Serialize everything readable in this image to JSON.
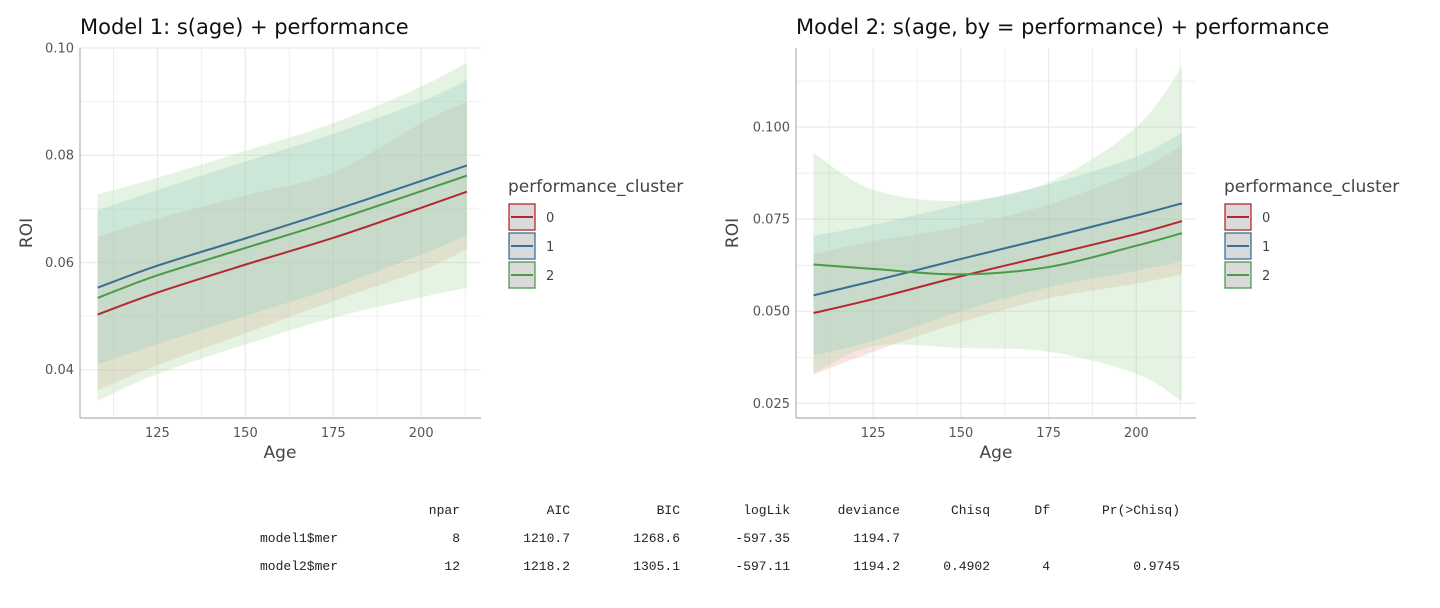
{
  "chart_data": [
    {
      "type": "line",
      "title": "Model 1: s(age) + performance",
      "xlabel": "Age",
      "ylabel": "ROI",
      "xlim": [
        103,
        217
      ],
      "ylim": [
        0.031,
        0.1
      ],
      "x_ticks": [
        125,
        150,
        175,
        200
      ],
      "y_ticks": [
        0.04,
        0.06,
        0.08,
        0.1
      ],
      "x_tick_labels": [
        "125",
        "150",
        "175",
        "200"
      ],
      "y_tick_labels": [
        "0.04",
        "0.06",
        "0.08",
        "0.10"
      ],
      "grid": true,
      "legend": {
        "title": "performance_cluster",
        "placement": "right",
        "entries": [
          "0",
          "1",
          "2"
        ]
      },
      "x": [
        108,
        125,
        150,
        175,
        200,
        213
      ],
      "series": [
        {
          "name": "0",
          "color": "#b2292e",
          "values": [
            0.0503,
            0.0544,
            0.0596,
            0.0646,
            0.0702,
            0.0732
          ],
          "lower": [
            0.0362,
            0.0408,
            0.0468,
            0.0528,
            0.0585,
            0.0625
          ],
          "upper": [
            0.0648,
            0.0682,
            0.0725,
            0.0768,
            0.086,
            0.09
          ]
        },
        {
          "name": "1",
          "color": "#3a6e94",
          "values": [
            0.0553,
            0.0594,
            0.0645,
            0.0697,
            0.0752,
            0.0781
          ],
          "lower": [
            0.041,
            0.0448,
            0.05,
            0.0553,
            0.0615,
            0.065
          ],
          "upper": [
            0.0697,
            0.0735,
            0.0788,
            0.084,
            0.09,
            0.094
          ]
        },
        {
          "name": "2",
          "color": "#4a9a4a",
          "values": [
            0.0534,
            0.0576,
            0.0627,
            0.0678,
            0.0733,
            0.0762
          ],
          "lower": [
            0.0342,
            0.0392,
            0.0447,
            0.0497,
            0.0535,
            0.0553
          ],
          "upper": [
            0.0727,
            0.0758,
            0.0808,
            0.086,
            0.0928,
            0.0973
          ]
        }
      ]
    },
    {
      "type": "line",
      "title": "Model 2: s(age, by = performance) + performance",
      "xlabel": "Age",
      "ylabel": "ROI",
      "xlim": [
        103,
        217
      ],
      "ylim": [
        0.021,
        0.1215
      ],
      "x_ticks": [
        125,
        150,
        175,
        200
      ],
      "y_ticks": [
        0.025,
        0.05,
        0.075,
        0.1
      ],
      "x_tick_labels": [
        "125",
        "150",
        "175",
        "200"
      ],
      "y_tick_labels": [
        "0.025",
        "0.050",
        "0.075",
        "0.100"
      ],
      "grid": true,
      "legend": {
        "title": "performance_cluster",
        "placement": "right",
        "entries": [
          "0",
          "1",
          "2"
        ]
      },
      "x": [
        108,
        125,
        150,
        175,
        200,
        213
      ],
      "series": [
        {
          "name": "0",
          "color": "#b2292e",
          "values": [
            0.0495,
            0.0533,
            0.0595,
            0.0652,
            0.071,
            0.0745
          ],
          "lower": [
            0.0328,
            0.039,
            0.047,
            0.0535,
            0.0575,
            0.06
          ],
          "upper": [
            0.0655,
            0.069,
            0.073,
            0.079,
            0.088,
            0.095
          ]
        },
        {
          "name": "1",
          "color": "#3a6e94",
          "values": [
            0.0543,
            0.0582,
            0.0642,
            0.07,
            0.076,
            0.0793
          ],
          "lower": [
            0.038,
            0.042,
            0.05,
            0.0565,
            0.061,
            0.0635
          ],
          "upper": [
            0.0705,
            0.0735,
            0.079,
            0.0845,
            0.092,
            0.0985
          ]
        },
        {
          "name": "2",
          "color": "#4a9a4a",
          "values": [
            0.0627,
            0.0615,
            0.06,
            0.062,
            0.0678,
            0.0712
          ],
          "lower": [
            0.033,
            0.0405,
            0.04,
            0.039,
            0.033,
            0.0255
          ],
          "upper": [
            0.093,
            0.083,
            0.08,
            0.085,
            0.1,
            0.1165
          ]
        }
      ]
    }
  ],
  "anova_table": {
    "headers": [
      "npar",
      "AIC",
      "BIC",
      "logLik",
      "deviance",
      "Chisq",
      "Df",
      "Pr(>Chisq)"
    ],
    "rows": [
      {
        "label": "model1$mer",
        "cells": [
          "8",
          "1210.7",
          "1268.6",
          "-597.35",
          "1194.7",
          "",
          "",
          ""
        ]
      },
      {
        "label": "model2$mer",
        "cells": [
          "12",
          "1218.2",
          "1305.1",
          "-597.11",
          "1194.2",
          "0.4902",
          "4",
          "0.9745"
        ]
      }
    ]
  }
}
